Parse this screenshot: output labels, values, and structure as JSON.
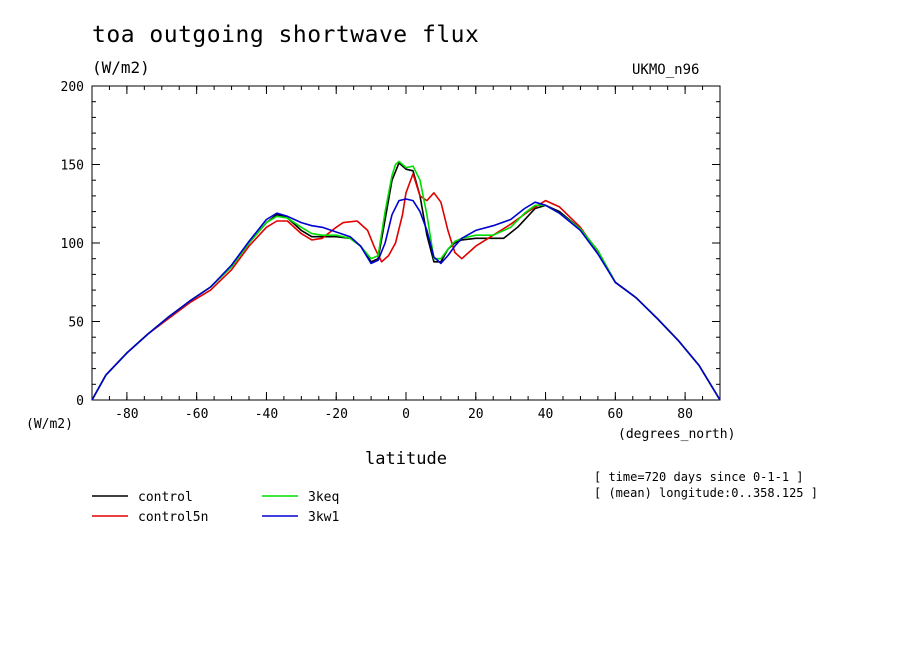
{
  "header": {
    "title": "toa outgoing shortwave flux",
    "units": "(W/m2)",
    "model": "UKMO_n96"
  },
  "metadata": {
    "line1": "[ time=720 days since 0-1-1 ]",
    "line2": "[ (mean) longitude:0..358.125 ]"
  },
  "chart_data": {
    "type": "line",
    "title": "toa outgoing shortwave flux",
    "xlabel": "latitude",
    "xunits": "(degrees_north)",
    "yunits": "(W/m2)",
    "xlim": [
      -90,
      90
    ],
    "ylim": [
      0,
      200
    ],
    "xticks": [
      -80,
      -60,
      -40,
      -20,
      0,
      20,
      40,
      60,
      80
    ],
    "xtick_labels": [
      "-80",
      "-60",
      "-40",
      "-20",
      "0",
      "20",
      "40",
      "60",
      "80"
    ],
    "yticks": [
      0,
      50,
      100,
      150,
      200
    ],
    "ytick_labels": [
      "0",
      "50",
      "100",
      "150",
      "200"
    ],
    "grid": false,
    "legend_position": "bottom-left",
    "series": [
      {
        "name": "control",
        "color": "#000000",
        "x": [
          -90,
          -86,
          -80,
          -74,
          -68,
          -62,
          -56,
          -50,
          -45,
          -40,
          -37,
          -34,
          -30,
          -27,
          -24,
          -20,
          -16,
          -13,
          -10,
          -8,
          -6,
          -4,
          -2,
          0,
          2,
          4,
          6,
          8,
          10,
          12,
          14,
          16,
          20,
          25,
          28,
          32,
          37,
          40,
          44,
          50,
          55,
          60,
          66,
          72,
          78,
          84,
          90
        ],
        "y": [
          0,
          16,
          30,
          42,
          53,
          63,
          72,
          85,
          100,
          113,
          118,
          116,
          108,
          104,
          104,
          104,
          103,
          98,
          88,
          90,
          115,
          140,
          151,
          147,
          146,
          130,
          105,
          88,
          88,
          96,
          100,
          102,
          103,
          103,
          103,
          110,
          122,
          124,
          120,
          109,
          95,
          75,
          65,
          52,
          38,
          22,
          0
        ]
      },
      {
        "name": "control5n",
        "color": "#e00000",
        "x": [
          -90,
          -86,
          -80,
          -74,
          -68,
          -62,
          -56,
          -50,
          -45,
          -40,
          -37,
          -34,
          -30,
          -27,
          -24,
          -20,
          -18,
          -14,
          -11,
          -9,
          -7,
          -5,
          -3,
          -1,
          0,
          2,
          4,
          6,
          8,
          10,
          12,
          14,
          16,
          20,
          25,
          30,
          35,
          40,
          44,
          50,
          55,
          60,
          66,
          72,
          78,
          84,
          90
        ],
        "y": [
          0,
          16,
          30,
          42,
          52,
          62,
          70,
          83,
          98,
          110,
          114,
          114,
          106,
          102,
          103,
          110,
          113,
          114,
          108,
          97,
          88,
          92,
          100,
          118,
          132,
          144,
          130,
          127,
          132,
          126,
          108,
          94,
          90,
          98,
          105,
          112,
          120,
          127,
          123,
          110,
          94,
          75,
          65,
          52,
          38,
          22,
          0
        ]
      },
      {
        "name": "3keq",
        "color": "#00dd00",
        "x": [
          -90,
          -86,
          -80,
          -74,
          -68,
          -62,
          -56,
          -50,
          -45,
          -40,
          -37,
          -34,
          -30,
          -27,
          -24,
          -20,
          -16,
          -13,
          -10,
          -8,
          -6,
          -4,
          -3,
          -2,
          0,
          2,
          4,
          6,
          8,
          10,
          12,
          14,
          16,
          20,
          25,
          30,
          34,
          37,
          40,
          44,
          50,
          55,
          60,
          66,
          72,
          78,
          84,
          90
        ],
        "y": [
          0,
          16,
          30,
          42,
          53,
          63,
          72,
          85,
          100,
          113,
          117,
          116,
          110,
          106,
          105,
          105,
          103,
          98,
          90,
          92,
          120,
          143,
          150,
          152,
          148,
          149,
          140,
          118,
          90,
          90,
          96,
          101,
          103,
          105,
          105,
          110,
          119,
          124,
          124,
          119,
          109,
          95,
          75,
          65,
          52,
          38,
          22,
          0
        ],
        "_note": ""
      },
      {
        "name": "3kw1",
        "color": "#0000d0",
        "x": [
          -90,
          -86,
          -80,
          -74,
          -68,
          -62,
          -56,
          -50,
          -45,
          -40,
          -37,
          -34,
          -30,
          -27,
          -24,
          -20,
          -16,
          -13,
          -10,
          -8,
          -6,
          -4,
          -2,
          0,
          2,
          4,
          6,
          8,
          10,
          12,
          14,
          16,
          20,
          25,
          30,
          34,
          37,
          40,
          44,
          50,
          55,
          60,
          66,
          72,
          78,
          84,
          90
        ],
        "y": [
          0,
          16,
          30,
          42,
          53,
          63,
          72,
          86,
          101,
          115,
          119,
          117,
          113,
          111,
          110,
          107,
          104,
          98,
          87,
          89,
          100,
          118,
          127,
          128,
          127,
          120,
          108,
          91,
          87,
          92,
          98,
          103,
          108,
          111,
          115,
          122,
          126,
          124,
          119,
          108,
          93,
          75,
          65,
          52,
          38,
          22,
          0
        ]
      }
    ]
  }
}
